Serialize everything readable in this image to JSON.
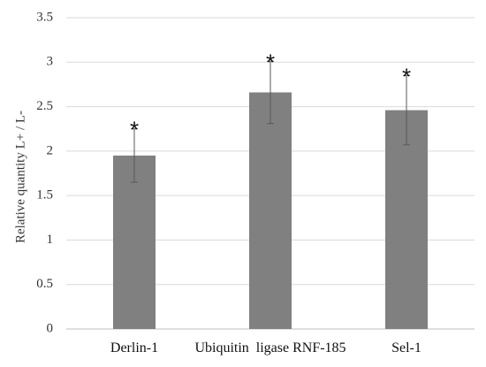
{
  "chart_data": {
    "type": "bar",
    "title": "",
    "xlabel": "",
    "ylabel": "Relative quantity L+ / L-",
    "categories": [
      "Derlin-1",
      "Ubiquitin  ligase RNF-185",
      "Sel-1"
    ],
    "values": [
      1.95,
      2.66,
      2.46
    ],
    "errors": [
      0.3,
      0.35,
      0.39
    ],
    "significance": [
      "*",
      "*",
      "*"
    ],
    "ylim": [
      0,
      3.5
    ],
    "yticks": [
      "0",
      "0.5",
      "1",
      "1.5",
      "2",
      "2.5",
      "3",
      "3.5"
    ],
    "grid": true,
    "legend": "none",
    "colors": {
      "bar": "#808080",
      "grid": "#d9d9d9",
      "error": "#595959",
      "axis": "#bfbfbf"
    }
  }
}
